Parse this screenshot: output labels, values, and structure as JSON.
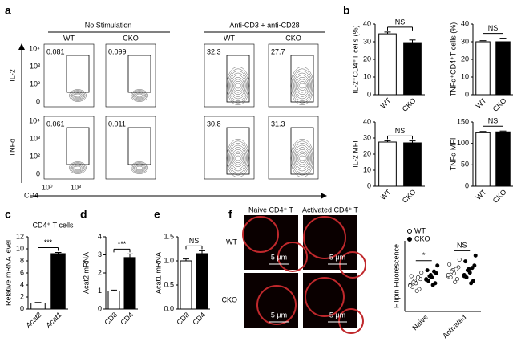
{
  "panel_labels": [
    "a",
    "b",
    "c",
    "d",
    "e",
    "f"
  ],
  "panel_a": {
    "groups": [
      "No Stimulation",
      "Anti-CD3 + anti-CD28"
    ],
    "columns": [
      "WT",
      "CKO",
      "WT",
      "CKO"
    ],
    "rows": [
      {
        "marker": "IL-2",
        "percents": [
          0.081,
          0.099,
          32.3,
          27.7
        ]
      },
      {
        "marker": "TNFα",
        "percents": [
          0.061,
          0.011,
          30.8,
          31.3
        ]
      }
    ],
    "y_ticks": [
      "10⁴",
      "10³",
      "10²",
      "0"
    ],
    "x_axis": "CD4",
    "x_ticks": [
      "10⁰",
      "10³"
    ]
  },
  "panel_f": {
    "columns": [
      "Naive CD4⁺ T",
      "Activated CD4⁺ T"
    ],
    "rows": [
      "WT",
      "CKO"
    ],
    "scale_bar": "5 μm"
  },
  "chart_data": [
    {
      "type": "bar",
      "y_label": "IL-2⁺CD4⁺T cells (%)",
      "categories": [
        "WT",
        "CKO"
      ],
      "values": [
        34.5,
        29.5
      ],
      "errors": [
        1,
        1.5
      ],
      "bar_colors": [
        "#ffffff",
        "#000000"
      ],
      "ylim": [
        0,
        40
      ],
      "yticks": [
        0,
        10,
        20,
        30,
        40
      ],
      "annotation": "NS"
    },
    {
      "type": "bar",
      "y_label": "TNFα⁺CD4⁺T cells (%)",
      "categories": [
        "WT",
        "CKO"
      ],
      "values": [
        30,
        30
      ],
      "errors": [
        0.6,
        2
      ],
      "bar_colors": [
        "#ffffff",
        "#000000"
      ],
      "ylim": [
        0,
        40
      ],
      "yticks": [
        0,
        10,
        20,
        30,
        40
      ],
      "annotation": "NS"
    },
    {
      "type": "bar",
      "y_label": "IL-2 MFI",
      "categories": [
        "WT",
        "CKO"
      ],
      "values": [
        27.5,
        27
      ],
      "errors": [
        0.8,
        1.2
      ],
      "bar_colors": [
        "#ffffff",
        "#000000"
      ],
      "ylim": [
        0,
        40
      ],
      "yticks": [
        0,
        10,
        20,
        30,
        40
      ],
      "annotation": "NS"
    },
    {
      "type": "bar",
      "y_label": "TNFα MFI",
      "categories": [
        "WT",
        "CKO"
      ],
      "values": [
        125,
        127
      ],
      "errors": [
        3,
        2
      ],
      "bar_colors": [
        "#ffffff",
        "#000000"
      ],
      "ylim": [
        0,
        150
      ],
      "yticks": [
        0,
        50,
        100,
        150
      ],
      "annotation": "NS"
    },
    {
      "type": "bar",
      "title": "CD4⁺ T cells",
      "y_label": "Relative mRNA level",
      "categories": [
        "Acat2",
        "Acat1"
      ],
      "category_style": "italic",
      "values": [
        1,
        9.2
      ],
      "errors": [
        0.1,
        0.2
      ],
      "bar_colors": [
        "#ffffff",
        "#000000"
      ],
      "ylim": [
        0,
        12
      ],
      "yticks": [
        0,
        2,
        4,
        6,
        8,
        10,
        12
      ],
      "annotation": "***"
    },
    {
      "type": "bar",
      "y_label": "Acat2 mRNA",
      "categories": [
        "CD8",
        "CD4"
      ],
      "values": [
        1,
        2.85
      ],
      "errors": [
        0.05,
        0.2
      ],
      "bar_colors": [
        "#ffffff",
        "#000000"
      ],
      "ylim": [
        0,
        4
      ],
      "yticks": [
        0,
        1,
        2,
        3,
        4
      ],
      "annotation": "***"
    },
    {
      "type": "bar",
      "y_label": "Acat1 mRNA",
      "categories": [
        "CD8",
        "CD4"
      ],
      "values": [
        1.0,
        1.15
      ],
      "errors": [
        0.04,
        0.06
      ],
      "bar_colors": [
        "#ffffff",
        "#000000"
      ],
      "ylim": [
        0,
        1.5
      ],
      "yticks": [
        {
          "value": 0,
          "label": "0.0"
        },
        0.5,
        {
          "value": 1,
          "label": "1.0"
        },
        1.5
      ],
      "annotation": "NS"
    },
    {
      "type": "strip",
      "y_label": "Filipin Fluorescence",
      "categories": [
        "Naive",
        "Activated"
      ],
      "annotations": [
        "*",
        "NS"
      ],
      "ylim": [
        0,
        120
      ],
      "series": [
        {
          "name": "WT",
          "color": "#ffffff",
          "values": [
            [
              45,
              52,
              38,
              60,
              48,
              55,
              42,
              35,
              66,
              50,
              58,
              44
            ],
            [
              60,
              70,
              55,
              80,
              65,
              75,
              58,
              50,
              88,
              68,
              72,
              62
            ]
          ]
        },
        {
          "name": "CKO",
          "color": "#000000",
          "values": [
            [
              55,
              62,
              48,
              70,
              58,
              65,
              52,
              45,
              78,
              60,
              68,
              54
            ],
            [
              62,
              72,
              52,
              85,
              66,
              78,
              58,
              48,
              95,
              70,
              74,
              60
            ]
          ]
        }
      ]
    }
  ]
}
